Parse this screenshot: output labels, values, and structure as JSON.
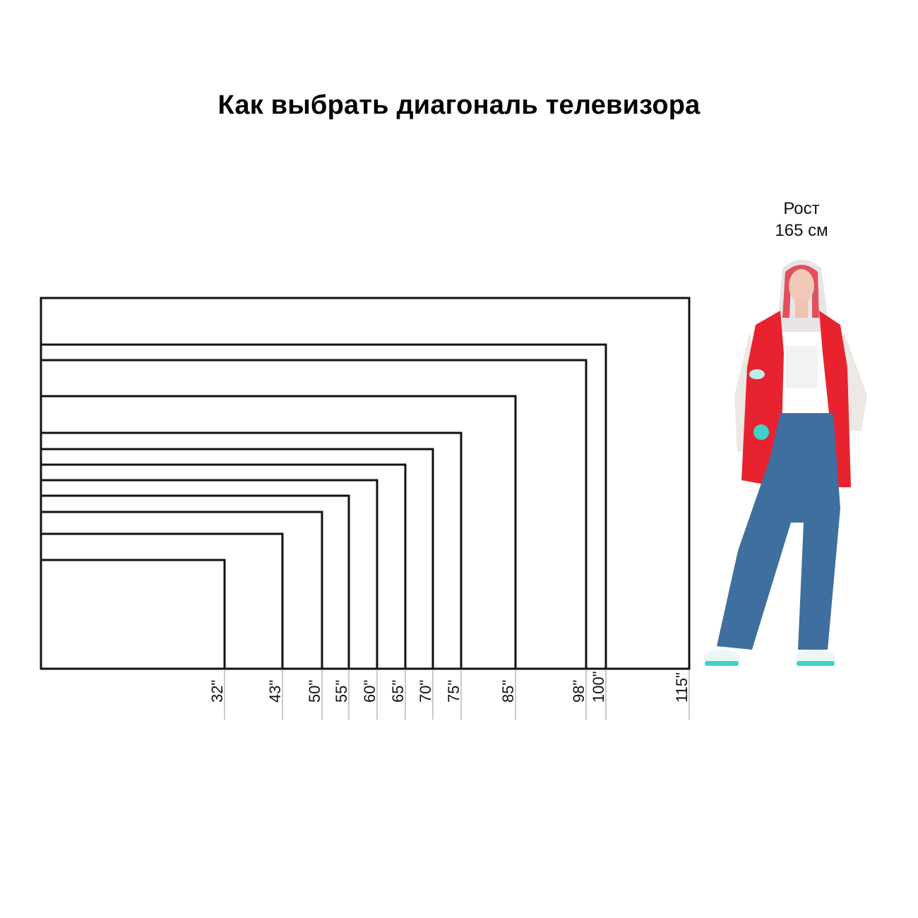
{
  "title": "Как выбрать диагональ телевизора",
  "person": {
    "label_line1": "Рост",
    "label_line2": "165 см",
    "height_cm": 165
  },
  "diagonals": [
    "32\"",
    "43\"",
    "50\"",
    "55\"",
    "60\"",
    "65\"",
    "70\"",
    "75\"",
    "85\"",
    "98\"",
    "100\"",
    "115\""
  ],
  "diagonal_values": [
    32,
    43,
    50,
    55,
    60,
    65,
    70,
    75,
    85,
    98,
    100,
    115
  ],
  "aspect_ratio": "16:9",
  "colors": {
    "outline": "#111111",
    "guide": "#b8b8b8",
    "jacket": "#e8232f",
    "jeans": "#3f6f9e",
    "accent": "#3fd3c8"
  }
}
